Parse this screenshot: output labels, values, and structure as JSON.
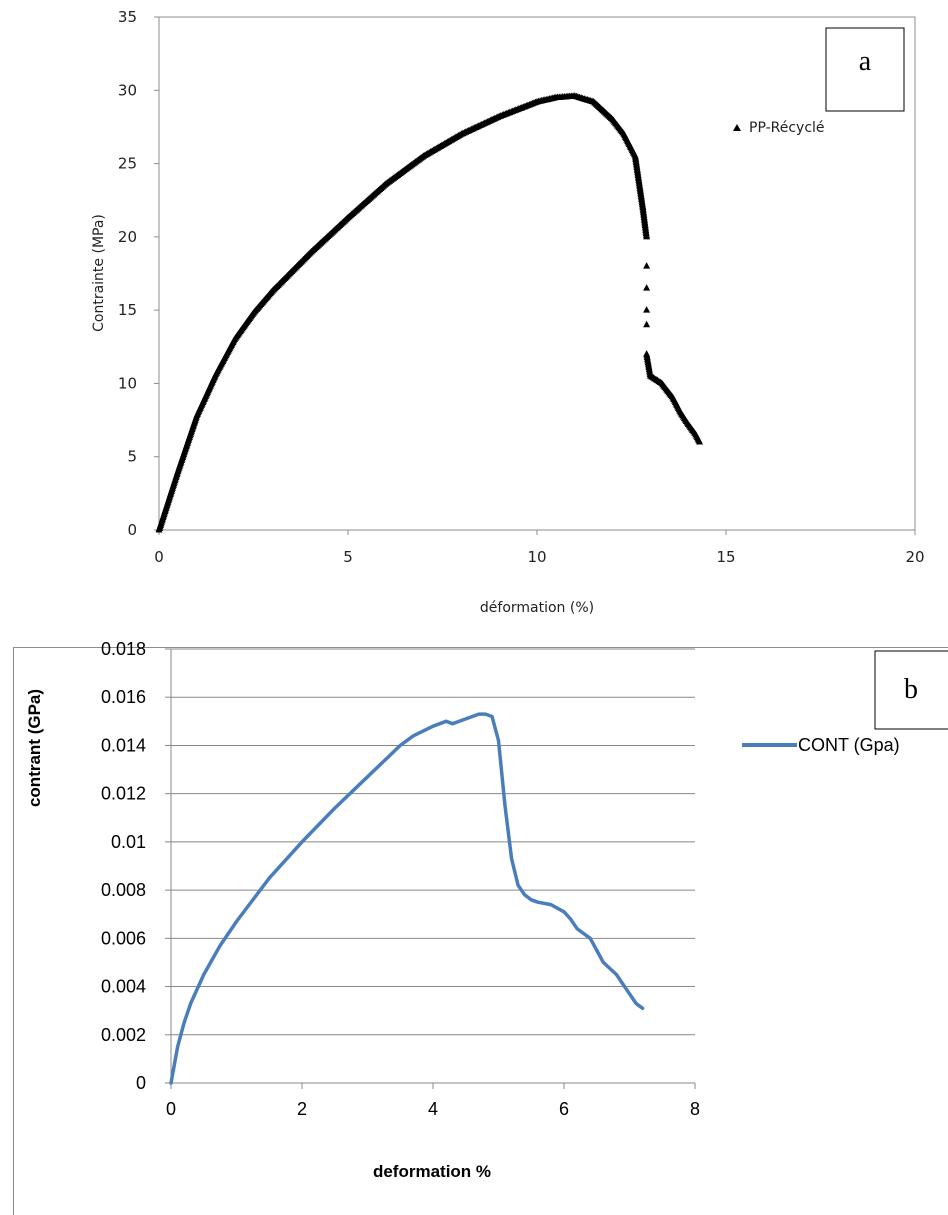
{
  "chart_data": [
    {
      "type": "scatter",
      "panel_label": "a",
      "xlabel": "déformation (%)",
      "ylabel": "Contrainte (MPa)",
      "xlim": [
        0,
        20
      ],
      "ylim": [
        0,
        35
      ],
      "xticks": [
        "0",
        "5",
        "10",
        "15",
        "20"
      ],
      "yticks": [
        "0",
        "5",
        "10",
        "15",
        "20",
        "25",
        "30",
        "35"
      ],
      "grid": false,
      "legend_position": "top-right",
      "marker_color": "#000000",
      "series": [
        {
          "name": "PP-Récyclé",
          "marker": "triangle",
          "x": [
            0,
            0.5,
            1,
            1.5,
            2,
            2.5,
            3,
            4,
            5,
            6,
            7,
            8,
            9,
            10,
            10.5,
            11,
            11.5,
            12,
            12.3,
            12.6,
            12.8,
            12.9,
            12.9,
            12.9,
            12.9,
            12.9,
            12.9,
            13,
            13.3,
            13.6,
            13.8,
            14.0,
            14.2,
            14.3
          ],
          "y": [
            0,
            4,
            7.8,
            10.6,
            13,
            14.8,
            16.3,
            18.9,
            21.3,
            23.6,
            25.5,
            27,
            28.2,
            29.2,
            29.5,
            29.6,
            29.2,
            28,
            27,
            25.5,
            22,
            20,
            18,
            16.5,
            15,
            14,
            12,
            10.5,
            10,
            9,
            8,
            7.2,
            6.5,
            6
          ]
        }
      ]
    },
    {
      "type": "line",
      "panel_label": "b",
      "xlabel": "deformation %",
      "ylabel": "contrant  (GPa)",
      "xlim": [
        0,
        8
      ],
      "ylim": [
        0,
        0.018
      ],
      "xticks": [
        "0",
        "2",
        "4",
        "6",
        "8"
      ],
      "yticks": [
        "0",
        "0.002",
        "0.004",
        "0.006",
        "0.008",
        "0.01",
        "0.012",
        "0.014",
        "0.016",
        "0.018"
      ],
      "grid": true,
      "legend_position": "right",
      "series_color": "#4a7ebb",
      "series": [
        {
          "name": "CONT (Gpa)",
          "x": [
            0,
            0.1,
            0.2,
            0.3,
            0.5,
            0.75,
            1,
            1.5,
            2,
            2.5,
            3,
            3.5,
            3.7,
            4.0,
            4.2,
            4.3,
            4.5,
            4.7,
            4.8,
            4.9,
            5.0,
            5.1,
            5.2,
            5.3,
            5.4,
            5.5,
            5.6,
            5.8,
            6.0,
            6.1,
            6.2,
            6.3,
            6.4,
            6.5,
            6.6,
            6.8,
            7.0,
            7.1,
            7.2
          ],
          "y": [
            0,
            0.0015,
            0.0025,
            0.0033,
            0.0045,
            0.0057,
            0.0067,
            0.0085,
            0.01,
            0.0114,
            0.0127,
            0.014,
            0.0144,
            0.0148,
            0.015,
            0.0149,
            0.0151,
            0.0153,
            0.0153,
            0.0152,
            0.0142,
            0.0115,
            0.0093,
            0.0082,
            0.0078,
            0.0076,
            0.0075,
            0.0074,
            0.0071,
            0.0068,
            0.0064,
            0.0062,
            0.006,
            0.0055,
            0.005,
            0.0045,
            0.0037,
            0.0033,
            0.0031
          ]
        }
      ]
    }
  ]
}
